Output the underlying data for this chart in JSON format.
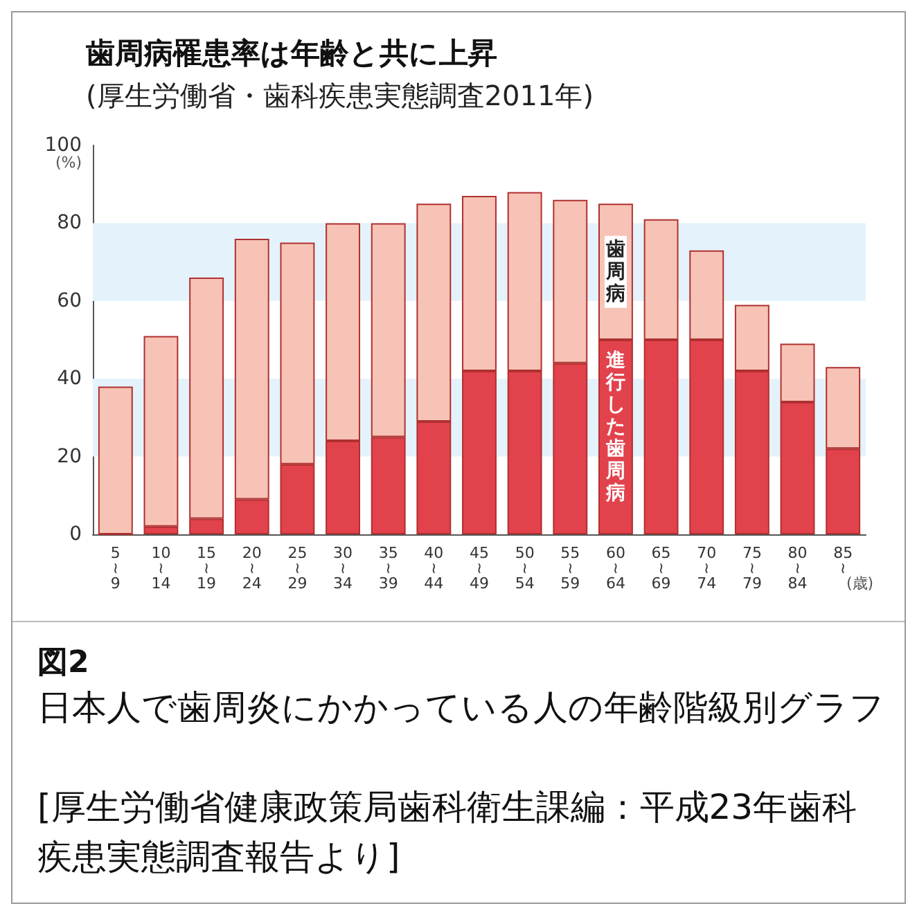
{
  "chart_data": {
    "type": "bar",
    "title": "歯周病罹患率は年齢と共に上昇",
    "subtitle": "(厚生労働省・歯科疾患実態調査2011年)",
    "xlabel": "(歳)",
    "ylabel": "(%)",
    "categories": [
      "5\n≀\n9",
      "10\n≀\n14",
      "15\n≀\n19",
      "20\n≀\n24",
      "25\n≀\n29",
      "30\n≀\n34",
      "35\n≀\n39",
      "40\n≀\n44",
      "45\n≀\n49",
      "50\n≀\n54",
      "55\n≀\n59",
      "60\n≀\n64",
      "65\n≀\n69",
      "70\n≀\n74",
      "75\n≀\n79",
      "80\n≀\n84",
      "85\n≀"
    ],
    "stacked": true,
    "series": [
      {
        "name": "進行した歯周病",
        "color": "#e2424c",
        "values": [
          0,
          2,
          4,
          9,
          18,
          24,
          25,
          29,
          42,
          42,
          44,
          50,
          50,
          50,
          42,
          34,
          22
        ]
      },
      {
        "name": "歯周病",
        "color": "#f7c3b6",
        "values": [
          38,
          49,
          62,
          67,
          57,
          56,
          55,
          56,
          45,
          46,
          42,
          35,
          31,
          23,
          17,
          15,
          21
        ]
      }
    ],
    "ylim": [
      0,
      100
    ],
    "yticks": [
      0,
      20,
      40,
      60,
      80,
      100
    ],
    "bands": [
      {
        "axis": "y",
        "from": 20,
        "to": 40,
        "color": "#e4f2fb"
      },
      {
        "axis": "y",
        "from": 60,
        "to": 80,
        "color": "#e4f2fb"
      }
    ],
    "annotations": [
      "図2",
      "日本人で歯周炎にかかっている人の年齢階級別グラフ",
      "[厚生労働省健康政策局歯科衛生課編：平成23年歯科疾患実態調査報告より]"
    ]
  }
}
